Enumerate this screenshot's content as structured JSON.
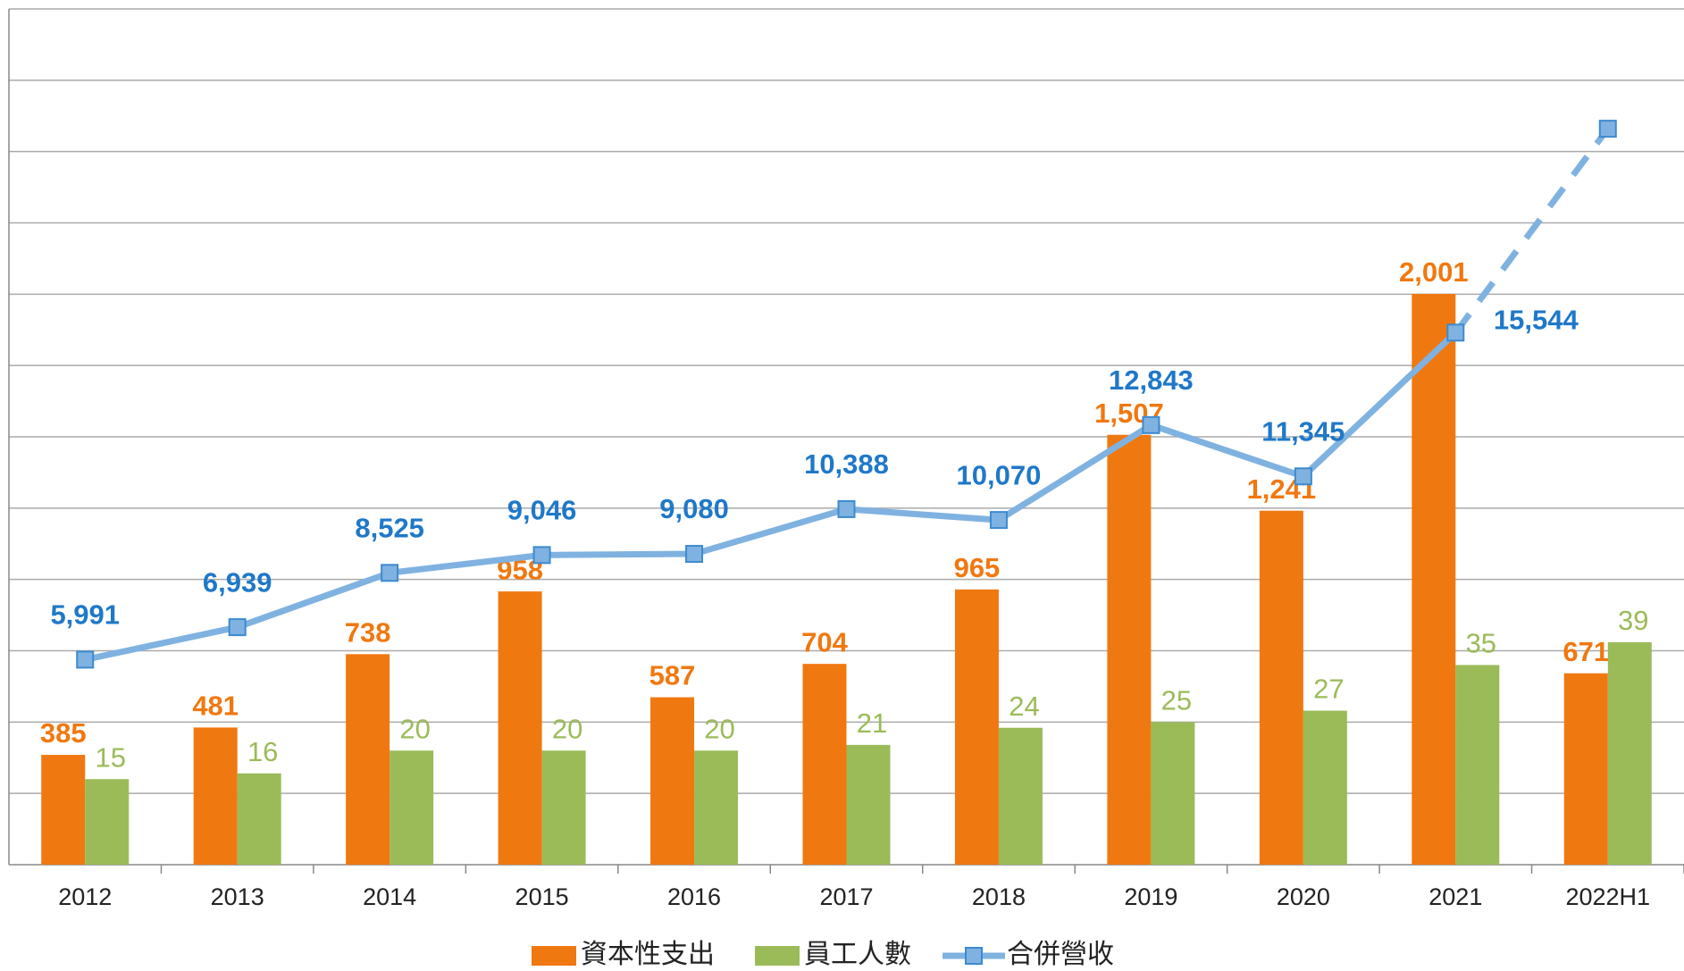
{
  "chart_data": {
    "type": "bar-line",
    "categories": [
      "2012",
      "2013",
      "2014",
      "2015",
      "2016",
      "2017",
      "2018",
      "2019",
      "2020",
      "2021",
      "2022H1"
    ],
    "series": [
      {
        "name": "資本性支出",
        "type": "bar",
        "color": "#f07810",
        "label_bold": true,
        "values": [
          385,
          481,
          738,
          958,
          587,
          704,
          965,
          1507,
          1241,
          2001,
          671
        ],
        "value_labels": [
          "385",
          "481",
          "738",
          "958",
          "587",
          "704",
          "965",
          "1,507",
          "1,241",
          "2,001",
          "671"
        ]
      },
      {
        "name": "員工人數",
        "type": "bar",
        "axis": "y2",
        "color": "#9bbb59",
        "label_bold": false,
        "values": [
          15,
          16,
          20,
          20,
          20,
          21,
          24,
          25,
          27,
          35,
          39
        ]
      },
      {
        "name": "合併營收",
        "type": "line",
        "axis": "y3",
        "color": "#1f78c8",
        "line_color": "#7fb2e0",
        "label_bold": true,
        "dashed_last_segment": true,
        "values": [
          5991,
          6939,
          8525,
          9046,
          9080,
          10388,
          10070,
          12843,
          11345,
          15544,
          21500
        ],
        "value_labels": [
          "5,991",
          "6,939",
          "8,525",
          "9,046",
          "9,080",
          "10,388",
          "10,070",
          "12,843",
          "11,345",
          "15,544",
          null
        ]
      }
    ],
    "ylim": [
      0,
      3000
    ],
    "yticks": [
      0,
      250,
      500,
      750,
      1000,
      1250,
      1500,
      1750,
      2000,
      2250,
      2500,
      2750,
      3000
    ],
    "y2lim": [
      0,
      150
    ],
    "y3lim": [
      0,
      25000
    ],
    "grid": true,
    "tick_labels": false,
    "legend": "bottom"
  }
}
